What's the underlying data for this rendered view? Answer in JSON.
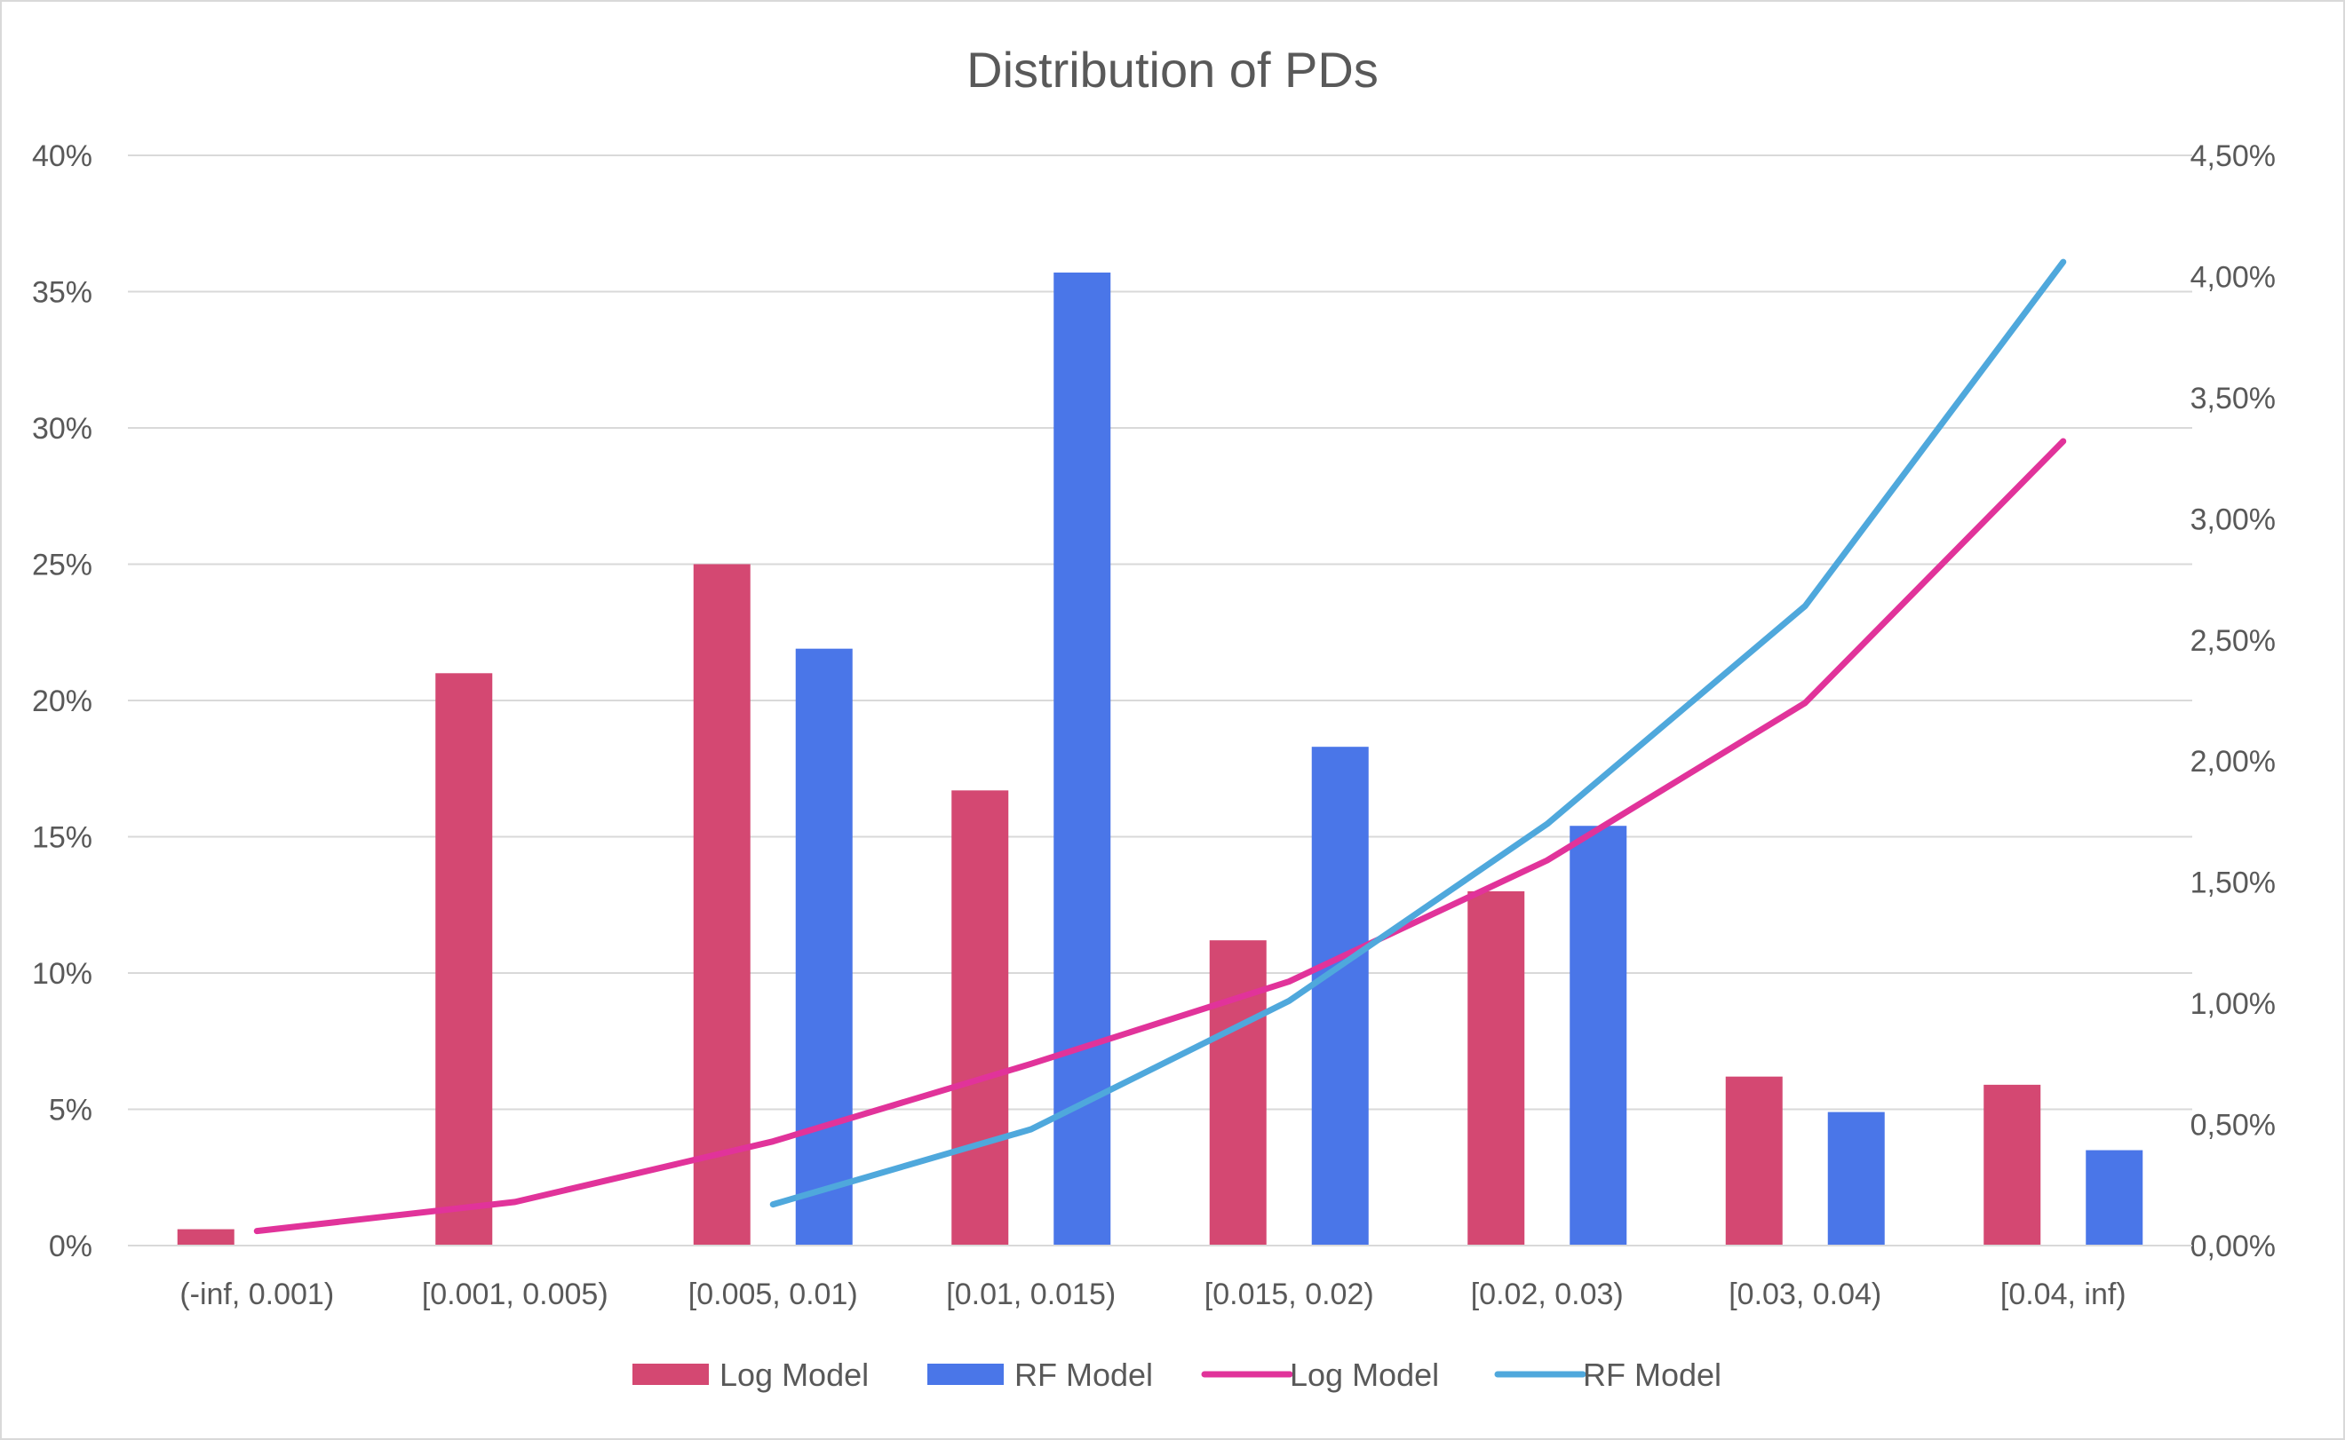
{
  "chart_data": {
    "type": "bar",
    "title": "Distribution of PDs",
    "categories": [
      "(-inf, 0.001)",
      "[0.001, 0.005)",
      "[0.005, 0.01)",
      "[0.01, 0.015)",
      "[0.015, 0.02)",
      "[0.02, 0.03)",
      "[0.03, 0.04)",
      "[0.04, inf)"
    ],
    "y_left": {
      "min": 0,
      "max": 0.4,
      "step": 0.05,
      "tick_labels": [
        "0%",
        "5%",
        "10%",
        "15%",
        "20%",
        "25%",
        "30%",
        "35%",
        "40%"
      ]
    },
    "y_right": {
      "min": 0,
      "max": 0.045,
      "step": 0.005,
      "tick_labels": [
        "0,00%",
        "0,50%",
        "1,00%",
        "1,50%",
        "2,00%",
        "2,50%",
        "3,00%",
        "3,50%",
        "4,00%",
        "4,50%"
      ]
    },
    "grid": true,
    "legend_position": "bottom",
    "series": [
      {
        "name": "Log Model",
        "kind": "bar",
        "axis": "left",
        "color": "#d44872",
        "values": [
          0.006,
          0.21,
          0.25,
          0.167,
          0.112,
          0.13,
          0.062,
          0.059
        ]
      },
      {
        "name": "RF Model",
        "kind": "bar",
        "axis": "left",
        "color": "#4a76e8",
        "values": [
          null,
          null,
          0.219,
          0.357,
          0.183,
          0.154,
          0.049,
          0.035
        ]
      },
      {
        "name": "Log Model",
        "kind": "line",
        "axis": "right",
        "color": "#e1339a",
        "values": [
          0.0006,
          0.0018,
          0.0043,
          0.0075,
          0.0109,
          0.0159,
          0.0224,
          0.0332
        ]
      },
      {
        "name": "RF Model",
        "kind": "line",
        "axis": "right",
        "color": "#4fa8dc",
        "values": [
          null,
          null,
          0.0017,
          0.0048,
          0.0101,
          0.0174,
          0.0264,
          0.0406
        ]
      }
    ]
  }
}
